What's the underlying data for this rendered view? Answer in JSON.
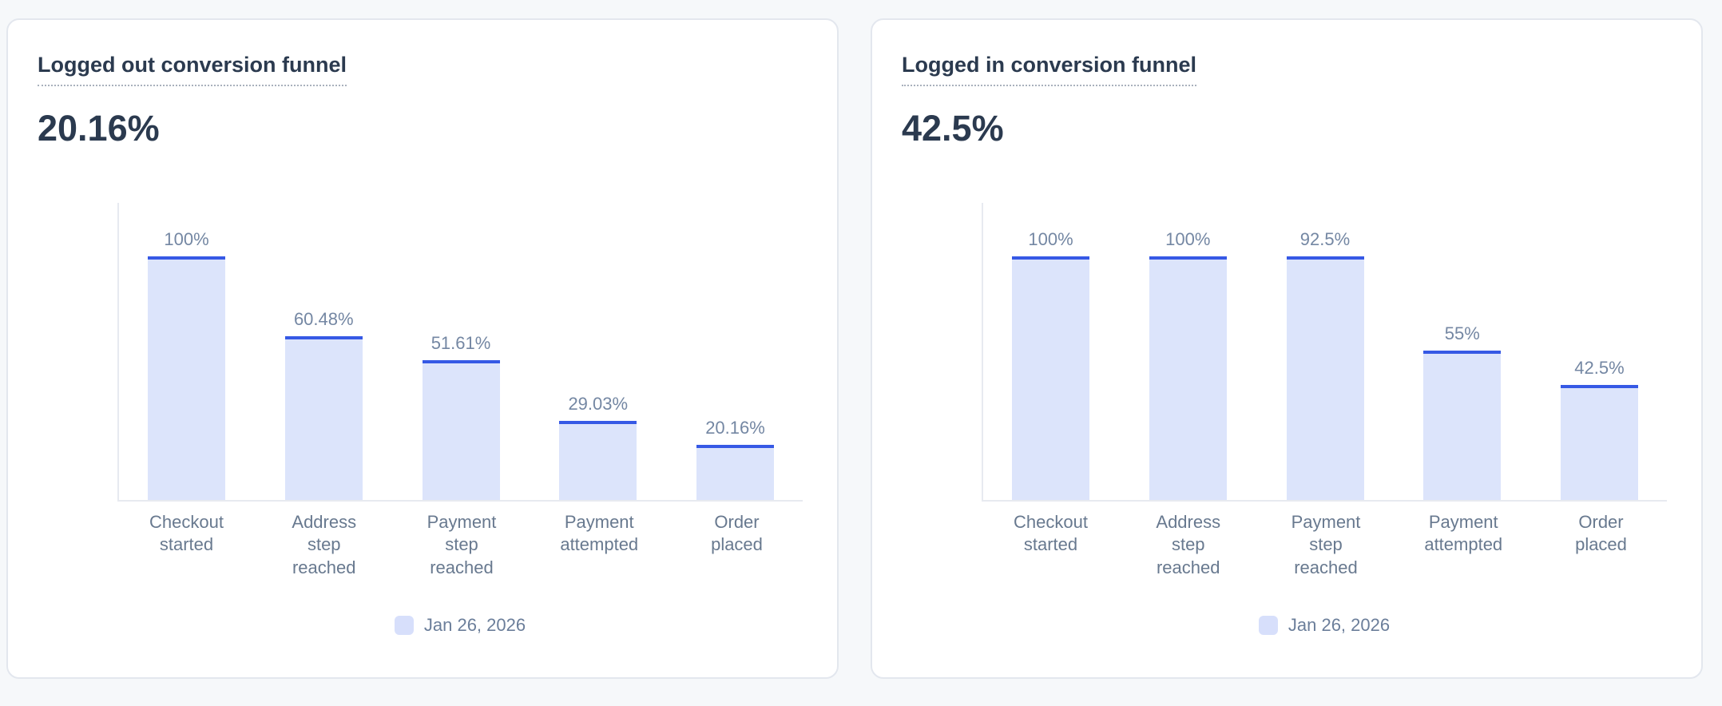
{
  "chart_data": [
    {
      "type": "bar",
      "title": "Logged out conversion funnel",
      "headline_value": "20.16%",
      "categories": [
        "Checkout started",
        "Address step reached",
        "Payment step reached",
        "Payment attempted",
        "Order placed"
      ],
      "series": [
        {
          "name": "Jan 26, 2026",
          "values": [
            100,
            60.48,
            51.61,
            29.03,
            20.16
          ]
        }
      ],
      "value_labels": [
        "100%",
        "60.48%",
        "51.61%",
        "29.03%",
        "20.16%"
      ],
      "ylim": [
        0,
        100
      ],
      "grid": false,
      "xlabel": "",
      "ylabel": "",
      "legend_position": "bottom-center"
    },
    {
      "type": "bar",
      "title": "Logged in conversion funnel",
      "headline_value": "42.5%",
      "categories": [
        "Checkout started",
        "Address step reached",
        "Payment step reached",
        "Payment attempted",
        "Order placed"
      ],
      "series": [
        {
          "name": "Jan 26, 2026",
          "values": [
            100,
            100,
            92.5,
            55,
            42.5
          ]
        }
      ],
      "value_labels": [
        "100%",
        "100%",
        "92.5%",
        "55%",
        "42.5%"
      ],
      "ylim": [
        0,
        100
      ],
      "grid": false,
      "xlabel": "",
      "ylabel": "",
      "legend_position": "bottom-center"
    }
  ],
  "colors": {
    "page_background": "#f6f8fa",
    "card_background": "#ffffff",
    "card_border": "#e3e7ee",
    "title_text": "#2b3a4f",
    "bar_fill": "#dce4fb",
    "bar_top_border": "#3659e5",
    "value_label_text": "#7487a3",
    "axis_label_text": "#68798f",
    "axis_line": "#e7eaf0",
    "legend_swatch": "#d7dffb",
    "legend_text": "#6b7e9a"
  }
}
